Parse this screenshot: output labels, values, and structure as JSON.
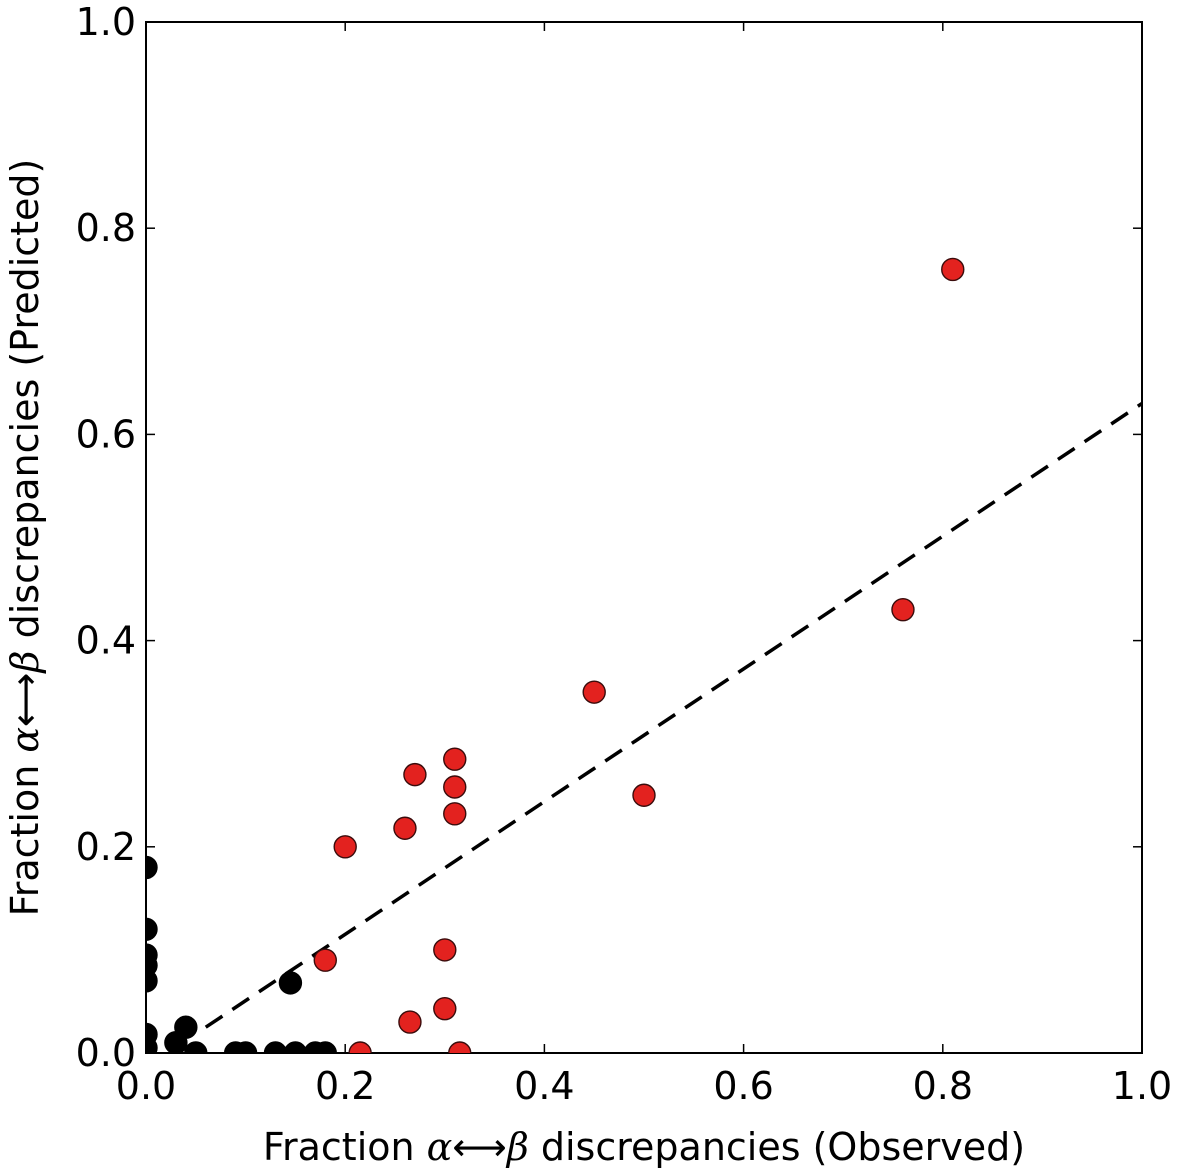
{
  "chart_data": {
    "type": "scatter",
    "title": "",
    "xlabel": {
      "prefix": "Fraction ",
      "alpha": "α",
      "arrow": "⟷",
      "beta": "β",
      "suffix": " discrepancies (Observed)"
    },
    "ylabel": {
      "prefix": "Fraction ",
      "alpha": "α",
      "arrow": "⟷",
      "beta": "β",
      "suffix": " discrepancies (Predicted)"
    },
    "xlim": [
      0.0,
      1.0
    ],
    "ylim": [
      0.0,
      1.0
    ],
    "xticks": [
      "0.0",
      "0.2",
      "0.4",
      "0.6",
      "0.8",
      "1.0"
    ],
    "yticks": [
      "0.0",
      "0.2",
      "0.4",
      "0.6",
      "0.8",
      "1.0"
    ],
    "grid": false,
    "legend": "none",
    "colors": {
      "red_series": "#e3221f",
      "black_series": "#000000",
      "fit_line": "#000000"
    },
    "fit_line": {
      "style": "dashed",
      "x": [
        0.06,
        1.0
      ],
      "y": [
        0.025,
        0.63
      ]
    },
    "series": [
      {
        "color": "#e3221f",
        "points": [
          [
            0.81,
            0.76
          ],
          [
            0.76,
            0.43
          ],
          [
            0.45,
            0.35
          ],
          [
            0.5,
            0.25
          ],
          [
            0.31,
            0.285
          ],
          [
            0.27,
            0.27
          ],
          [
            0.31,
            0.258
          ],
          [
            0.26,
            0.218
          ],
          [
            0.31,
            0.232
          ],
          [
            0.2,
            0.2
          ],
          [
            0.3,
            0.1
          ],
          [
            0.18,
            0.09
          ],
          [
            0.3,
            0.043
          ],
          [
            0.265,
            0.03
          ],
          [
            0.215,
            0.0
          ],
          [
            0.315,
            0.0
          ]
        ]
      },
      {
        "color": "#000000",
        "points": [
          [
            0.0,
            0.18
          ],
          [
            0.0,
            0.12
          ],
          [
            0.0,
            0.095
          ],
          [
            0.0,
            0.085
          ],
          [
            0.0,
            0.07
          ],
          [
            0.0,
            0.018
          ],
          [
            0.0,
            0.005
          ],
          [
            0.145,
            0.068
          ],
          [
            0.04,
            0.025
          ],
          [
            0.03,
            0.01
          ],
          [
            0.05,
            0.0
          ],
          [
            0.09,
            0.0
          ],
          [
            0.1,
            0.0
          ],
          [
            0.13,
            0.0
          ],
          [
            0.15,
            0.0
          ],
          [
            0.17,
            0.0
          ],
          [
            0.18,
            0.0
          ]
        ]
      }
    ]
  }
}
